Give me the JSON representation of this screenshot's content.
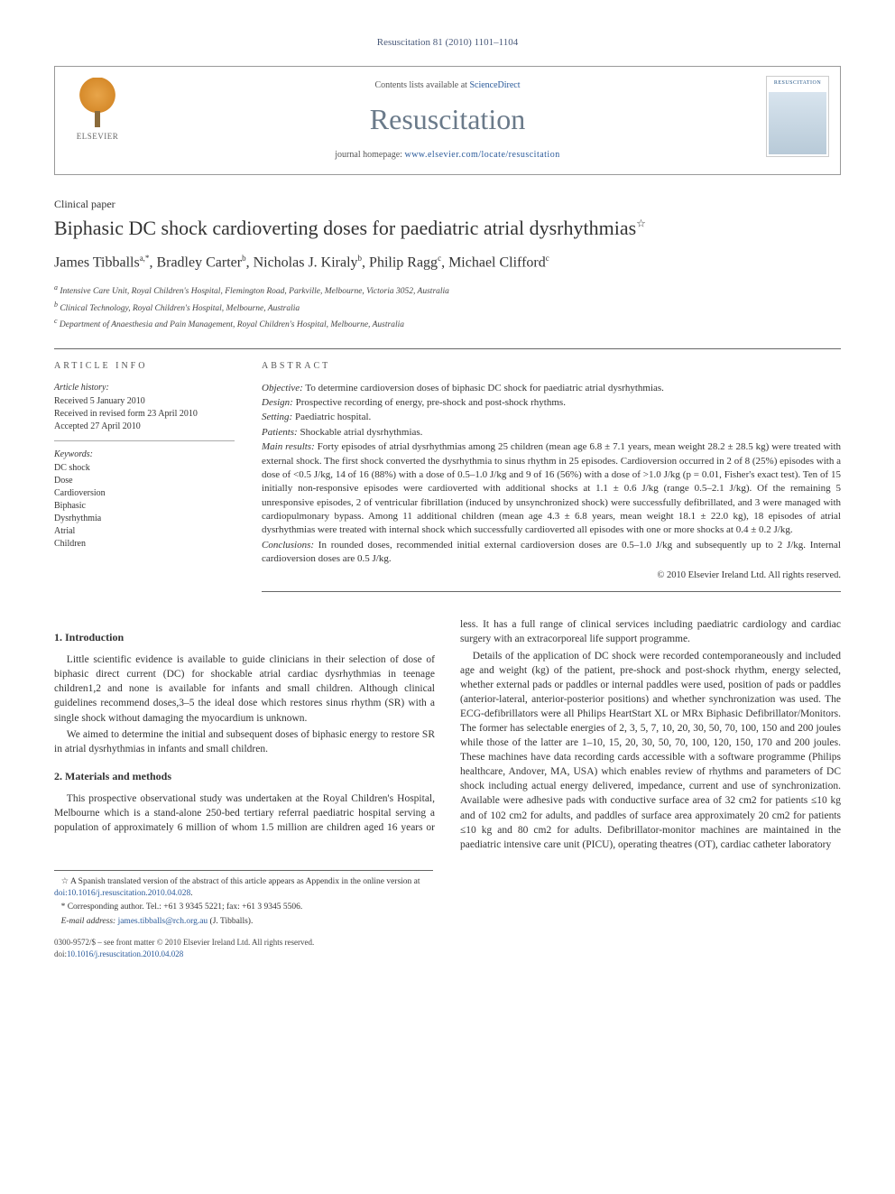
{
  "running_header": "Resuscitation 81 (2010) 1101–1104",
  "masthead": {
    "contents_prefix": "Contents lists available at ",
    "contents_link": "ScienceDirect",
    "journal": "Resuscitation",
    "homepage_prefix": "journal homepage: ",
    "homepage_url": "www.elsevier.com/locate/resuscitation",
    "publisher_brand": "ELSEVIER",
    "cover_label": "RESUSCITATION"
  },
  "article": {
    "type": "Clinical paper",
    "title": "Biphasic DC shock cardioverting doses for paediatric atrial dysrhythmias",
    "title_mark": "☆"
  },
  "authors_line": {
    "a1": "James Tibballs",
    "a1_sup": "a,*",
    "a2": "Bradley Carter",
    "a2_sup": "b",
    "a3": "Nicholas J. Kiraly",
    "a3_sup": "b",
    "a4": "Philip Ragg",
    "a4_sup": "c",
    "a5": "Michael Clifford",
    "a5_sup": "c"
  },
  "affiliations": {
    "a": "Intensive Care Unit, Royal Children's Hospital, Flemington Road, Parkville, Melbourne, Victoria 3052, Australia",
    "b": "Clinical Technology, Royal Children's Hospital, Melbourne, Australia",
    "c": "Department of Anaesthesia and Pain Management, Royal Children's Hospital, Melbourne, Australia"
  },
  "info": {
    "heading": "article info",
    "history_label": "Article history:",
    "received": "Received 5 January 2010",
    "revised": "Received in revised form 23 April 2010",
    "accepted": "Accepted 27 April 2010",
    "keywords_label": "Keywords:",
    "keywords": [
      "DC shock",
      "Dose",
      "Cardioversion",
      "Biphasic",
      "Dysrhythmia",
      "Atrial",
      "Children"
    ]
  },
  "abstract": {
    "heading": "abstract",
    "objective_lbl": "Objective:",
    "objective": " To determine cardioversion doses of biphasic DC shock for paediatric atrial dysrhythmias.",
    "design_lbl": "Design:",
    "design": " Prospective recording of energy, pre-shock and post-shock rhythms.",
    "setting_lbl": "Setting:",
    "setting": " Paediatric hospital.",
    "patients_lbl": "Patients:",
    "patients": " Shockable atrial dysrhythmias.",
    "results_lbl": "Main results:",
    "results": " Forty episodes of atrial dysrhythmias among 25 children (mean age 6.8 ± 7.1 years, mean weight 28.2 ± 28.5 kg) were treated with external shock. The first shock converted the dysrhythmia to sinus rhythm in 25 episodes. Cardioversion occurred in 2 of 8 (25%) episodes with a dose of <0.5 J/kg, 14 of 16 (88%) with a dose of 0.5–1.0 J/kg and 9 of 16 (56%) with a dose of >1.0 J/kg (p = 0.01, Fisher's exact test). Ten of 15 initially non-responsive episodes were cardioverted with additional shocks at 1.1 ± 0.6 J/kg (range 0.5–2.1 J/kg). Of the remaining 5 unresponsive episodes, 2 of ventricular fibrillation (induced by unsynchronized shock) were successfully defibrillated, and 3 were managed with cardiopulmonary bypass. Among 11 additional children (mean age 4.3 ± 6.8 years, mean weight 18.1 ± 22.0 kg), 18 episodes of atrial dysrhythmias were treated with internal shock which successfully cardioverted all episodes with one or more shocks at 0.4 ± 0.2 J/kg.",
    "conclusions_lbl": "Conclusions:",
    "conclusions": " In rounded doses, recommended initial external cardioversion doses are 0.5–1.0 J/kg and subsequently up to 2 J/kg. Internal cardioversion doses are 0.5 J/kg.",
    "copyright": "© 2010 Elsevier Ireland Ltd. All rights reserved."
  },
  "body": {
    "h1": "1. Introduction",
    "p1": "Little scientific evidence is available to guide clinicians in their selection of dose of biphasic direct current (DC) for shockable atrial cardiac dysrhythmias in teenage children1,2 and none is available for infants and small children. Although clinical guidelines recommend doses,3–5 the ideal dose which restores sinus rhythm (SR) with a single shock without damaging the myocardium is unknown.",
    "p2": "We aimed to determine the initial and subsequent doses of biphasic energy to restore SR in atrial dysrhythmias in infants and small children.",
    "h2": "2. Materials and methods",
    "p3": "This prospective observational study was undertaken at the Royal Children's Hospital, Melbourne which is a stand-alone 250-bed tertiary referral paediatric hospital serving a population of approximately 6 million of whom 1.5 million are children aged 16 years or less. It has a full range of clinical services including paediatric cardiology and cardiac surgery with an extracorporeal life support programme.",
    "p4": "Details of the application of DC shock were recorded contemporaneously and included age and weight (kg) of the patient, pre-shock and post-shock rhythm, energy selected, whether external pads or paddles or internal paddles were used, position of pads or paddles (anterior-lateral, anterior-posterior positions) and whether synchronization was used. The ECG-defibrillators were all Philips HeartStart XL or MRx Biphasic Defibrillator/Monitors. The former has selectable energies of 2, 3, 5, 7, 10, 20, 30, 50, 70, 100, 150 and 200 joules while those of the latter are 1–10, 15, 20, 30, 50, 70, 100, 120, 150, 170 and 200 joules. These machines have data recording cards accessible with a software programme (Philips healthcare, Andover, MA, USA) which enables review of rhythms and parameters of DC shock including actual energy delivered, impedance, current and use of synchronization. Available were adhesive pads with conductive surface area of 32 cm2 for patients ≤10 kg and of 102 cm2 for adults, and paddles of surface area approximately 20 cm2 for patients ≤10 kg and 80 cm2 for adults. Defibrillator-monitor machines are maintained in the paediatric intensive care unit (PICU), operating theatres (OT), cardiac catheter laboratory"
  },
  "footnotes": {
    "star": "☆ A Spanish translated version of the abstract of this article appears as Appendix in the online version at ",
    "star_doi": "doi:10.1016/j.resuscitation.2010.04.028",
    "corr": "* Corresponding author. Tel.: +61 3 9345 5221; fax: +61 3 9345 5506.",
    "email_lbl": "E-mail address: ",
    "email": "james.tibballs@rch.org.au",
    "email_sfx": " (J. Tibballs)."
  },
  "footer": {
    "line1": "0300-9572/$ – see front matter © 2010 Elsevier Ireland Ltd. All rights reserved.",
    "line2_pre": "doi:",
    "line2_doi": "10.1016/j.resuscitation.2010.04.028"
  }
}
